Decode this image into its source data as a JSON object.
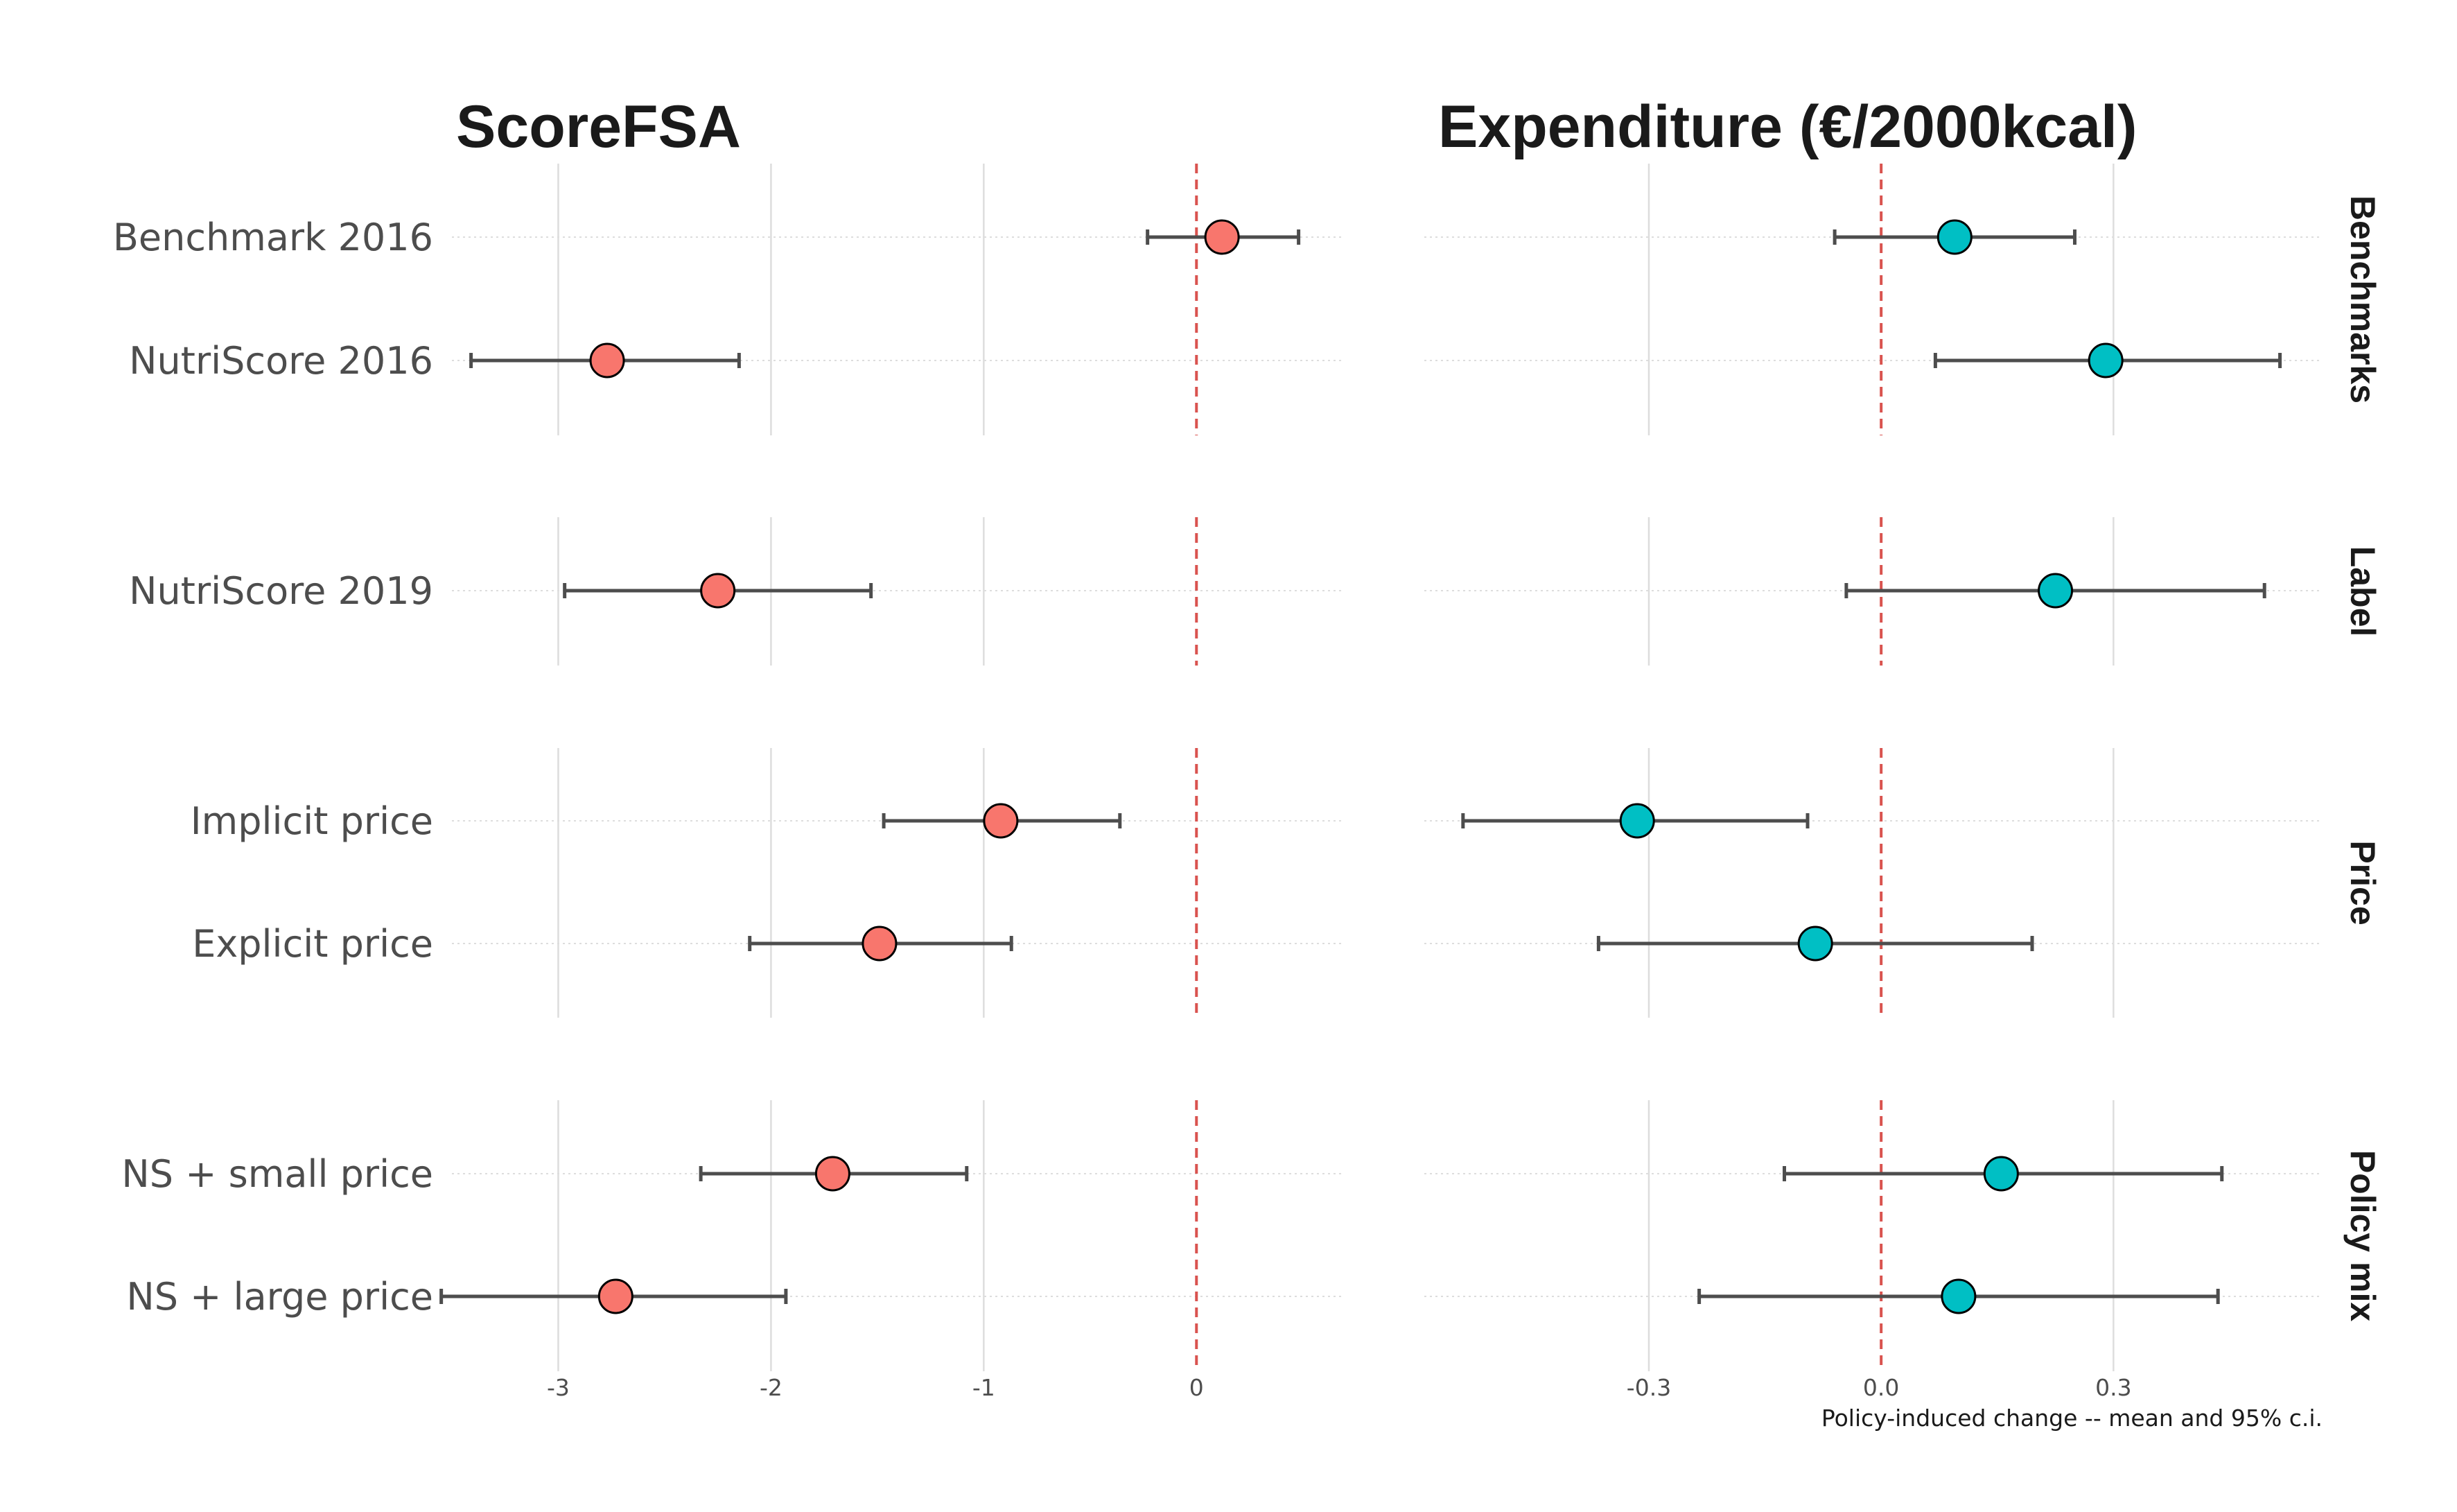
{
  "chart_data": {
    "type": "scatter",
    "subtype": "forest-plot (point estimate with 95% interval)",
    "caption": "Policy-induced change -- mean and 95% c.i.",
    "colors": {
      "point_left": "#F8766D",
      "point_right": "#00BFC4",
      "errorbar": "#4d4d4d",
      "zero_line": "#d9534f",
      "grid": "#dddddd"
    },
    "groups": [
      {
        "label": "Benchmarks",
        "rows": [
          "Benchmark 2016",
          "NutriScore 2016"
        ]
      },
      {
        "label": "Label",
        "rows": [
          "NutriScore 2019"
        ]
      },
      {
        "label": "Price",
        "rows": [
          "Implicit price",
          "Explicit price"
        ]
      },
      {
        "label": "Policy mix",
        "rows": [
          "NS + small price",
          "NS + large price"
        ]
      }
    ],
    "panels": [
      {
        "title": "ScoreFSA",
        "xlim": [
          -3.5,
          0.68
        ],
        "ticks": [
          -3,
          -2,
          -1,
          0
        ],
        "tick_labels": [
          "-3",
          "-2",
          "-1",
          "0"
        ],
        "color_key": "point_left",
        "values": [
          {
            "row": "Benchmark 2016",
            "mean": 0.12,
            "lo": -0.23,
            "hi": 0.48
          },
          {
            "row": "NutriScore 2016",
            "mean": -2.77,
            "lo": -3.41,
            "hi": -2.15
          },
          {
            "row": "NutriScore 2019",
            "mean": -2.25,
            "lo": -2.97,
            "hi": -1.53
          },
          {
            "row": "Implicit price",
            "mean": -0.92,
            "lo": -1.47,
            "hi": -0.36
          },
          {
            "row": "Explicit price",
            "mean": -1.49,
            "lo": -2.1,
            "hi": -0.87
          },
          {
            "row": "NS + small price",
            "mean": -1.71,
            "lo": -2.33,
            "hi": -1.08
          },
          {
            "row": "NS + large price",
            "mean": -2.73,
            "lo": -3.55,
            "hi": -1.93
          }
        ]
      },
      {
        "title": "Expenditure (€/2000kcal)",
        "xlim": [
          -0.59,
          0.57
        ],
        "ticks": [
          -0.3,
          0.0,
          0.3
        ],
        "tick_labels": [
          "-0.3",
          "0.0",
          "0.3"
        ],
        "color_key": "point_right",
        "values": [
          {
            "row": "Benchmark 2016",
            "mean": 0.095,
            "lo": -0.06,
            "hi": 0.25
          },
          {
            "row": "NutriScore 2016",
            "mean": 0.29,
            "lo": 0.07,
            "hi": 0.515
          },
          {
            "row": "NutriScore 2019",
            "mean": 0.225,
            "lo": -0.045,
            "hi": 0.495
          },
          {
            "row": "Implicit price",
            "mean": -0.315,
            "lo": -0.54,
            "hi": -0.095
          },
          {
            "row": "Explicit price",
            "mean": -0.085,
            "lo": -0.365,
            "hi": 0.195
          },
          {
            "row": "NS + small price",
            "mean": 0.155,
            "lo": -0.125,
            "hi": 0.44
          },
          {
            "row": "NS + large price",
            "mean": 0.1,
            "lo": -0.235,
            "hi": 0.435
          }
        ]
      }
    ]
  }
}
